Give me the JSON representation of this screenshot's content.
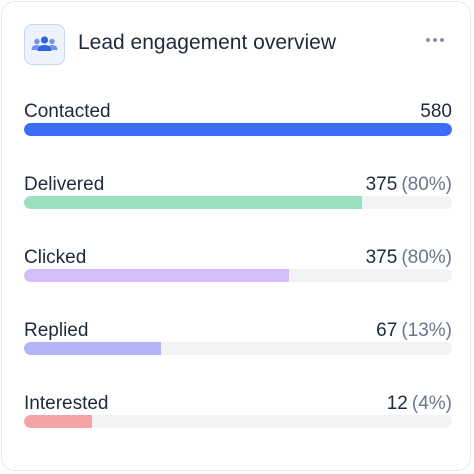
{
  "header": {
    "title": "Lead engagement overview"
  },
  "rows": [
    {
      "label": "Contacted",
      "value": 580,
      "fill": 100,
      "color": "#3b6ef5"
    },
    {
      "label": "Delivered",
      "value": 375,
      "percent": "(80%)",
      "fill": 79,
      "color": "#9be1c1"
    },
    {
      "label": "Clicked",
      "value": 375,
      "percent": "(80%)",
      "fill": 62,
      "color": "#d5bdf9"
    },
    {
      "label": "Replied",
      "value": 67,
      "percent": "(13%)",
      "fill": 32,
      "color": "#b2b4f6"
    },
    {
      "label": "Interested",
      "value": 12,
      "percent": "(4%)",
      "fill": 16,
      "color": "#f4a3a6"
    }
  ]
}
